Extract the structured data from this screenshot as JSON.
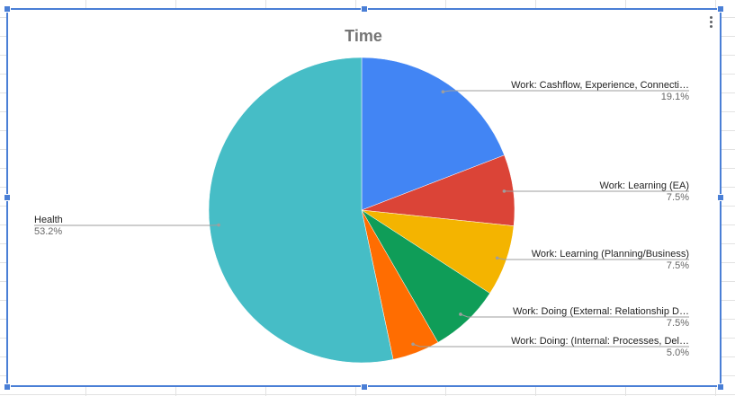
{
  "chart_data": {
    "type": "pie",
    "title": "Time",
    "slices": [
      {
        "label": "Work: Cashflow, Experience, Connecti…",
        "value": 19.1,
        "value_label": "19.1%",
        "color": "#4285f4"
      },
      {
        "label": "Work: Learning (EA)",
        "value": 7.5,
        "value_label": "7.5%",
        "color": "#db4437"
      },
      {
        "label": "Work: Learning (Planning/Business)",
        "value": 7.5,
        "value_label": "7.5%",
        "color": "#f4b400"
      },
      {
        "label": "Work: Doing (External: Relationship D…",
        "value": 7.5,
        "value_label": "7.5%",
        "color": "#0f9d58"
      },
      {
        "label": "Work: Doing: (Internal: Processes, Del…",
        "value": 5.0,
        "value_label": "5.0%",
        "color": "#ff6d01"
      },
      {
        "label": "Health",
        "value": 53.2,
        "value_label": "53.2%",
        "color": "#46bdc6"
      }
    ],
    "start_angle": "12 o'clock",
    "direction": "clockwise",
    "legend": "none",
    "labels": "outside with leader lines"
  },
  "ui": {
    "menu_icon": "vertical-ellipsis-icon"
  }
}
